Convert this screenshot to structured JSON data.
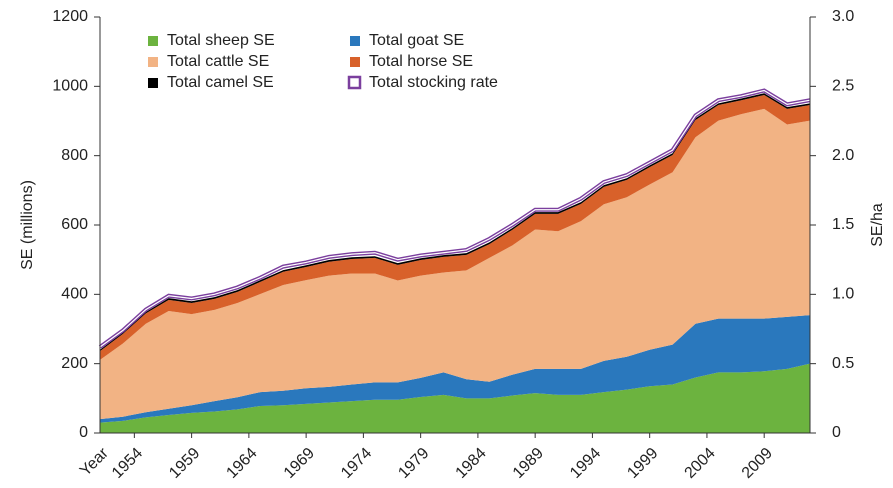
{
  "chart_data": {
    "type": "stacked_area",
    "x_label": "Year",
    "y_label": "SE (millions)",
    "y2_label": "SE/ha",
    "x": [
      1951,
      1953,
      1955,
      1957,
      1959,
      1961,
      1963,
      1965,
      1967,
      1969,
      1971,
      1973,
      1975,
      1977,
      1979,
      1981,
      1983,
      1985,
      1987,
      1989,
      1991,
      1993,
      1995,
      1997,
      1999,
      2001,
      2003,
      2005,
      2007,
      2009,
      2011,
      2013
    ],
    "xlim": [
      1951,
      2013
    ],
    "xticks": [
      1954,
      1959,
      1964,
      1969,
      1974,
      1979,
      1984,
      1989,
      1994,
      1999,
      2004,
      2009
    ],
    "ylim": [
      0,
      1200
    ],
    "yticks": [
      0,
      200,
      400,
      600,
      800,
      1000,
      1200
    ],
    "y2lim": [
      0,
      3.0
    ],
    "y2ticks": [
      0,
      0.5,
      {
        "value": 1.0,
        "label": "1.0"
      },
      1.5,
      {
        "value": 2.0,
        "label": "2.0"
      },
      2.5,
      {
        "value": 3.0,
        "label": "3.0"
      }
    ],
    "series": [
      {
        "name": "Total sheep SE",
        "color": "#6cb33f",
        "values": [
          30,
          35,
          45,
          52,
          58,
          62,
          68,
          78,
          80,
          84,
          88,
          92,
          96,
          96,
          104,
          110,
          100,
          100,
          108,
          115,
          110,
          110,
          118,
          125,
          135,
          140,
          160,
          175,
          175,
          178,
          185,
          200
        ]
      },
      {
        "name": "Total goat SE",
        "color": "#2a78bd",
        "values": [
          10,
          12,
          15,
          18,
          22,
          30,
          35,
          40,
          42,
          45,
          45,
          48,
          50,
          50,
          55,
          65,
          55,
          48,
          60,
          70,
          75,
          75,
          90,
          95,
          105,
          115,
          155,
          155,
          155,
          152,
          150,
          140
        ]
      },
      {
        "name": "Total cattle SE",
        "color": "#f2b384",
        "values": [
          171,
          211,
          255,
          282,
          263,
          263,
          272,
          283,
          305,
          312,
          321,
          320,
          314,
          294,
          295,
          288,
          314,
          357,
          373,
          402,
          397,
          426,
          452,
          460,
          477,
          497,
          538,
          571,
          590,
          605,
          555,
          561
        ]
      },
      {
        "name": "Total horse SE",
        "color": "#d8612a",
        "values": [
          25,
          28,
          30,
          32,
          32,
          32,
          32,
          35,
          38,
          38,
          40,
          42,
          45,
          45,
          45,
          45,
          45,
          40,
          45,
          45,
          50,
          50,
          50,
          50,
          50,
          50,
          50,
          45,
          40,
          40,
          45,
          45
        ]
      },
      {
        "name": "Total camel SE",
        "color": "#000000",
        "values": [
          4,
          4,
          4,
          5,
          5,
          5,
          5,
          5,
          5,
          5,
          5,
          5,
          5,
          5,
          5,
          5,
          5,
          5,
          5,
          5,
          5,
          5,
          5,
          5,
          5,
          5,
          5,
          5,
          5,
          5,
          5,
          5
        ]
      },
      {
        "name": "Total stocking rate",
        "color": "#7b3f9e",
        "axis": "y2",
        "values": [
          0.62,
          0.74,
          0.89,
          0.99,
          0.97,
          1.0,
          1.05,
          1.12,
          1.2,
          1.23,
          1.27,
          1.29,
          1.3,
          1.25,
          1.28,
          1.3,
          1.32,
          1.4,
          1.5,
          1.61,
          1.61,
          1.69,
          1.81,
          1.86,
          1.95,
          2.04,
          2.29,
          2.4,
          2.43,
          2.47,
          2.37,
          2.4
        ]
      }
    ]
  }
}
